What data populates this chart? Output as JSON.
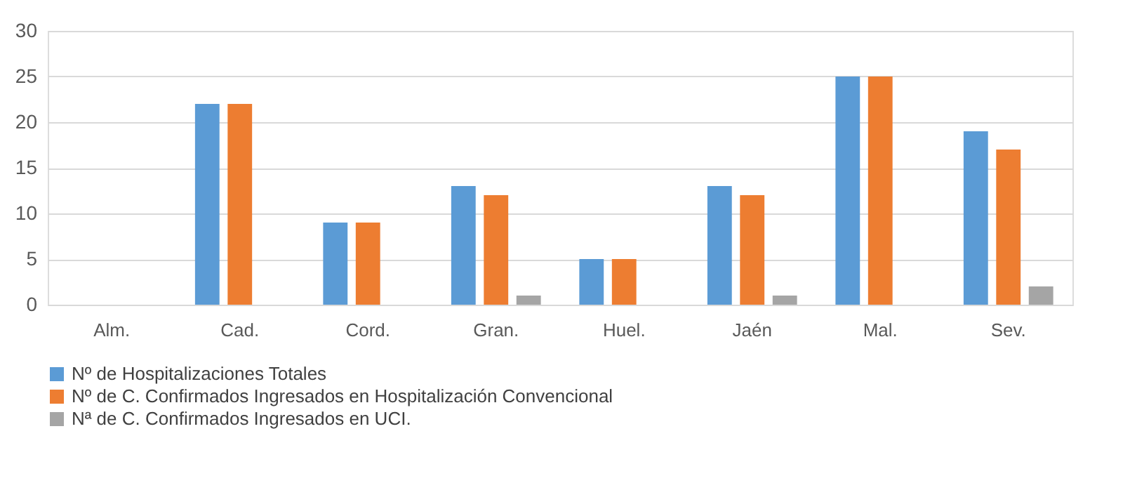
{
  "chart_data": {
    "type": "bar",
    "categories": [
      "Alm.",
      "Cad.",
      "Cord.",
      "Gran.",
      "Huel.",
      "Jaén",
      "Mal.",
      "Sev."
    ],
    "series": [
      {
        "name": "Nº de Hospitalizaciones Totales",
        "color": "#5b9bd5",
        "values": [
          0,
          22,
          9,
          13,
          5,
          13,
          25,
          19
        ]
      },
      {
        "name": "Nº de C. Confirmados Ingresados en Hospitalización Convencional",
        "color": "#ed7d31",
        "values": [
          0,
          22,
          9,
          12,
          5,
          12,
          25,
          17
        ]
      },
      {
        "name": "Nª de C. Confirmados Ingresados en UCI.",
        "color": "#a5a5a5",
        "values": [
          0,
          0,
          0,
          1,
          0,
          1,
          0,
          2
        ]
      }
    ],
    "ylim": [
      0,
      30
    ],
    "yticks": [
      0,
      5,
      10,
      15,
      20,
      25,
      30
    ],
    "grid": "y",
    "legend": "bottom"
  }
}
